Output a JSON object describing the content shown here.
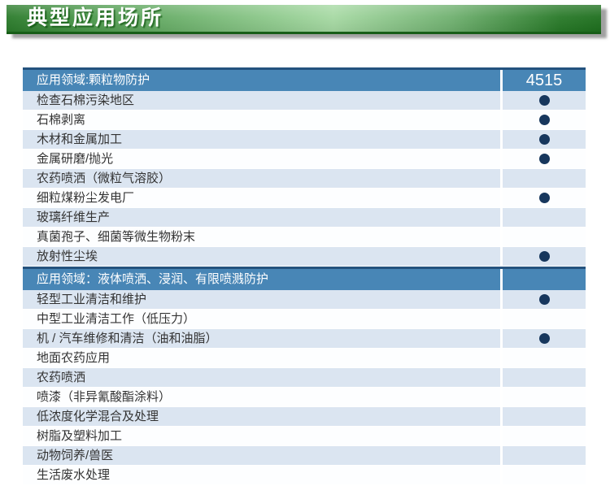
{
  "banner": {
    "title": "典型应用场所"
  },
  "table": {
    "product_code": "4515",
    "sections": [
      {
        "header": "应用领域:颗粒物防护",
        "rows": [
          {
            "label": "检查石棉污染地区",
            "dot": true
          },
          {
            "label": "石棉剥离",
            "dot": true
          },
          {
            "label": "木材和金属加工",
            "dot": true
          },
          {
            "label": "金属研磨/抛光",
            "dot": true
          },
          {
            "label": "农药喷洒（微粒气溶胶）",
            "dot": false
          },
          {
            "label": "细粒煤粉尘发电厂",
            "dot": true
          },
          {
            "label": "玻璃纤维生产",
            "dot": false
          },
          {
            "label": "真菌孢子、细菌等微生物粉末",
            "dot": false
          },
          {
            "label": "放射性尘埃",
            "dot": true
          }
        ]
      },
      {
        "header": "应用领域：液体喷洒、浸润、有限喷溅防护",
        "rows": [
          {
            "label": "轻型工业清洁和维护",
            "dot": true
          },
          {
            "label": "中型工业清洁工作（低压力）",
            "dot": false
          },
          {
            "label": "机 / 汽车维修和清洁（油和油脂）",
            "dot": true
          },
          {
            "label": "地面农药应用",
            "dot": false
          },
          {
            "label": "农药喷洒",
            "dot": false
          },
          {
            "label": "喷漆（非异氰酸酯涂料）",
            "dot": false
          },
          {
            "label": "低浓度化学混合及处理",
            "dot": false
          },
          {
            "label": "树脂及塑料加工",
            "dot": false
          },
          {
            "label": "动物饲养/兽医",
            "dot": false
          },
          {
            "label": "生活废水处理",
            "dot": false
          }
        ]
      }
    ]
  },
  "colors": {
    "banner_green_dark": "#2b7b2b",
    "banner_green_light": "#a6d9a3",
    "banner_border": "#175e17",
    "header_blue": "#4886b6",
    "header_border_navy": "#24527e",
    "row_light_blue": "#dbe5f1",
    "row_white": "#ffffff",
    "dot_navy": "#17375d",
    "text_dark": "#333333"
  }
}
